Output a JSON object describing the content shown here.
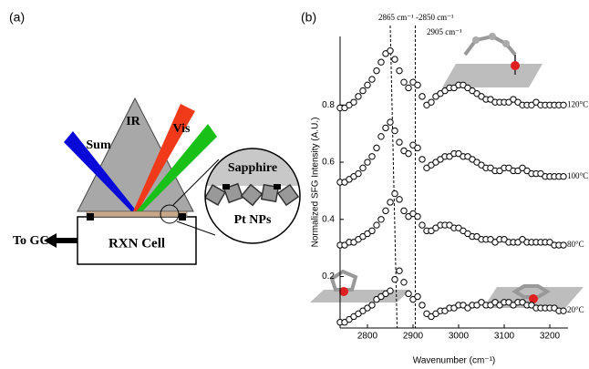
{
  "panel_a": {
    "label": "(a)",
    "beams": {
      "sum": "Sum",
      "ir": "IR",
      "vis": "Vis"
    },
    "cell": "RXN Cell",
    "outlet": "To GC",
    "inset": {
      "top": "Sapphire",
      "bottom": "Pt NPs"
    }
  },
  "chart_data": {
    "type": "scatter",
    "panel_label": "(b)",
    "x_label": "Wavenumber (cm⁻¹)",
    "y_label": "Normalized SFG Intensity (A.U.)",
    "annotations": [
      "2865 cm⁻¹ -2850 cm⁻¹",
      "2905 cm⁻¹"
    ],
    "reference_lines": [
      {
        "top": 2850,
        "bottom": 2865
      },
      {
        "top": 2905,
        "bottom": 2905
      }
    ],
    "xlim": [
      2740,
      3240
    ],
    "ylim": [
      0.02,
      1.04
    ],
    "xticks": [
      2800,
      2900,
      3000,
      3100,
      3200
    ],
    "yticks": [
      0.2,
      0.4,
      0.6,
      0.8
    ],
    "x": [
      2740,
      2750,
      2760,
      2770,
      2780,
      2790,
      2800,
      2810,
      2820,
      2830,
      2840,
      2850,
      2860,
      2870,
      2880,
      2890,
      2900,
      2910,
      2920,
      2930,
      2940,
      2950,
      2960,
      2970,
      2980,
      2990,
      3000,
      3010,
      3020,
      3030,
      3040,
      3050,
      3060,
      3070,
      3080,
      3090,
      3100,
      3110,
      3120,
      3130,
      3140,
      3150,
      3160,
      3170,
      3180,
      3190,
      3200,
      3210,
      3220,
      3230
    ],
    "series": [
      {
        "name": "120°C",
        "color": "#000000",
        "values": [
          0.79,
          0.79,
          0.8,
          0.81,
          0.83,
          0.85,
          0.87,
          0.89,
          0.92,
          0.95,
          0.98,
          0.99,
          0.96,
          0.92,
          0.88,
          0.86,
          0.88,
          0.87,
          0.83,
          0.8,
          0.81,
          0.83,
          0.84,
          0.85,
          0.86,
          0.86,
          0.87,
          0.87,
          0.86,
          0.85,
          0.84,
          0.83,
          0.82,
          0.82,
          0.81,
          0.81,
          0.81,
          0.81,
          0.82,
          0.81,
          0.8,
          0.8,
          0.8,
          0.81,
          0.8,
          0.8,
          0.8,
          0.8,
          0.8,
          0.8
        ]
      },
      {
        "name": "100°C",
        "color": "#000000",
        "values": [
          0.53,
          0.53,
          0.54,
          0.55,
          0.56,
          0.58,
          0.6,
          0.62,
          0.65,
          0.69,
          0.72,
          0.74,
          0.71,
          0.67,
          0.64,
          0.63,
          0.66,
          0.65,
          0.61,
          0.58,
          0.59,
          0.6,
          0.61,
          0.62,
          0.62,
          0.63,
          0.63,
          0.62,
          0.62,
          0.61,
          0.6,
          0.59,
          0.58,
          0.58,
          0.57,
          0.57,
          0.58,
          0.58,
          0.57,
          0.57,
          0.58,
          0.57,
          0.56,
          0.56,
          0.56,
          0.55,
          0.55,
          0.55,
          0.55,
          0.55
        ]
      },
      {
        "name": "80°C",
        "color": "#000000",
        "values": [
          0.31,
          0.31,
          0.32,
          0.32,
          0.33,
          0.34,
          0.35,
          0.36,
          0.38,
          0.4,
          0.43,
          0.46,
          0.49,
          0.47,
          0.43,
          0.41,
          0.42,
          0.41,
          0.38,
          0.36,
          0.36,
          0.37,
          0.38,
          0.38,
          0.38,
          0.37,
          0.37,
          0.36,
          0.35,
          0.34,
          0.34,
          0.33,
          0.33,
          0.33,
          0.32,
          0.33,
          0.33,
          0.32,
          0.32,
          0.32,
          0.33,
          0.32,
          0.32,
          0.32,
          0.32,
          0.32,
          0.32,
          0.31,
          0.31,
          0.31
        ]
      },
      {
        "name": "20°C",
        "color": "#000000",
        "values": [
          0.04,
          0.04,
          0.05,
          0.06,
          0.07,
          0.08,
          0.09,
          0.1,
          0.12,
          0.13,
          0.14,
          0.15,
          0.19,
          0.22,
          0.18,
          0.14,
          0.12,
          0.13,
          0.1,
          0.07,
          0.06,
          0.07,
          0.08,
          0.08,
          0.09,
          0.09,
          0.1,
          0.1,
          0.09,
          0.1,
          0.1,
          0.11,
          0.1,
          0.1,
          0.11,
          0.1,
          0.11,
          0.11,
          0.1,
          0.11,
          0.11,
          0.1,
          0.1,
          0.09,
          0.09,
          0.09,
          0.09,
          0.09,
          0.08,
          0.08
        ]
      }
    ]
  }
}
